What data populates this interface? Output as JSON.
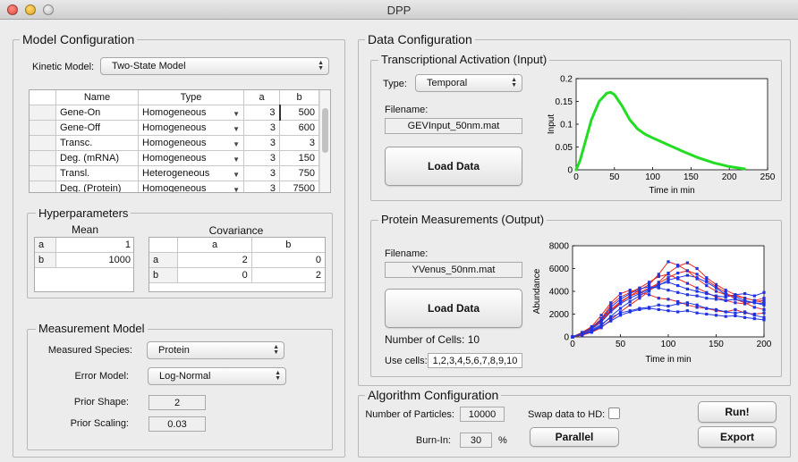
{
  "window": {
    "title": "DPP"
  },
  "model_config": {
    "title": "Model Configuration",
    "kinetic_label": "Kinetic Model:",
    "kinetic_value": "Two-State Model",
    "table": {
      "headers": [
        "Name",
        "Type",
        "a",
        "b"
      ],
      "rows": [
        {
          "name": "Gene-On",
          "type": "Homogeneous",
          "a": "3",
          "b": "500"
        },
        {
          "name": "Gene-Off",
          "type": "Homogeneous",
          "a": "3",
          "b": "600"
        },
        {
          "name": "Transc.",
          "type": "Homogeneous",
          "a": "3",
          "b": "3"
        },
        {
          "name": "Deg. (mRNA)",
          "type": "Homogeneous",
          "a": "3",
          "b": "150"
        },
        {
          "name": "Transl.",
          "type": "Heterogeneous",
          "a": "3",
          "b": "750"
        },
        {
          "name": "Deg. (Protein)",
          "type": "Homogeneous",
          "a": "3",
          "b": "7500"
        }
      ]
    },
    "hyper": {
      "title": "Hyperparameters",
      "mean_title": "Mean",
      "cov_title": "Covariance",
      "mean_rows": [
        {
          "label": "a",
          "value": "1"
        },
        {
          "label": "b",
          "value": "1000"
        }
      ],
      "cov_headers": [
        "a",
        "b"
      ],
      "cov_rows": [
        {
          "label": "a",
          "values": [
            "2",
            "0"
          ]
        },
        {
          "label": "b",
          "values": [
            "0",
            "2"
          ]
        }
      ]
    },
    "measurement": {
      "title": "Measurement Model",
      "species_label": "Measured Species:",
      "species_value": "Protein",
      "error_label": "Error Model:",
      "error_value": "Log-Normal",
      "shape_label": "Prior Shape:",
      "shape_value": "2",
      "scaling_label": "Prior Scaling:",
      "scaling_value": "0.03"
    }
  },
  "data_config": {
    "title": "Data Configuration",
    "input": {
      "title": "Transcriptional Activation (Input)",
      "type_label": "Type:",
      "type_value": "Temporal",
      "filename_label": "Filename:",
      "filename_value": "GEVInput_50nm.mat",
      "load_label": "Load Data"
    },
    "output": {
      "title": "Protein Measurements (Output)",
      "filename_label": "Filename:",
      "filename_value": "YVenus_50nm.mat",
      "load_label": "Load Data",
      "cells_text": "Number of Cells: 10",
      "use_cells_label": "Use cells:",
      "use_cells_value": "1,2,3,4,5,6,7,8,9,10"
    }
  },
  "algorithm": {
    "title": "Algorithm Configuration",
    "particles_label": "Number of Particles:",
    "particles_value": "10000",
    "burnin_label": "Burn-In:",
    "burnin_value": "30",
    "burnin_unit": "%",
    "swap_label": "Swap data to HD:",
    "swap_checked": false,
    "parallel_label": "Parallel",
    "run_label": "Run!",
    "export_label": "Export"
  },
  "chart_data": [
    {
      "type": "line",
      "title": "",
      "xlabel": "Time in min",
      "ylabel": "Input",
      "xlim": [
        0,
        250
      ],
      "ylim": [
        0,
        0.2
      ],
      "xticks": [
        0,
        50,
        100,
        150,
        200,
        250
      ],
      "yticks": [
        0,
        0.05,
        0.1,
        0.15,
        0.2
      ],
      "series": [
        {
          "color": "#22dd22",
          "x": [
            0,
            5,
            10,
            20,
            30,
            40,
            45,
            50,
            60,
            70,
            80,
            90,
            100,
            120,
            140,
            160,
            180,
            200,
            220
          ],
          "y": [
            0,
            0.02,
            0.05,
            0.11,
            0.15,
            0.168,
            0.17,
            0.165,
            0.14,
            0.11,
            0.09,
            0.078,
            0.07,
            0.055,
            0.04,
            0.026,
            0.015,
            0.007,
            0.002
          ]
        }
      ]
    },
    {
      "type": "line",
      "title": "",
      "xlabel": "Time in min",
      "ylabel": "Abundance",
      "xlim": [
        0,
        200
      ],
      "ylim": [
        0,
        8000
      ],
      "xticks": [
        0,
        50,
        100,
        150,
        200
      ],
      "yticks": [
        0,
        2000,
        4000,
        6000,
        8000
      ],
      "x": [
        0,
        10,
        20,
        30,
        40,
        50,
        60,
        70,
        80,
        90,
        100,
        110,
        120,
        130,
        140,
        150,
        160,
        170,
        180,
        190,
        200
      ],
      "series": [
        {
          "y": [
            0,
            300,
            800,
            1600,
            2800,
            3500,
            3900,
            4300,
            4800,
            5300,
            5500,
            5100,
            4700,
            4300,
            3900,
            3500,
            3200,
            3000,
            2900,
            3100,
            3200
          ]
        },
        {
          "y": [
            0,
            200,
            500,
            1000,
            1800,
            2500,
            3100,
            3600,
            4100,
            4500,
            5000,
            5200,
            5400,
            5200,
            4800,
            4300,
            3700,
            3500,
            3200,
            3000,
            2800
          ]
        },
        {
          "y": [
            0,
            400,
            900,
            1900,
            3000,
            3800,
            4100,
            3900,
            3700,
            3400,
            3300,
            3100,
            2800,
            2600,
            2500,
            2300,
            2200,
            2400,
            2100,
            2000,
            2100
          ]
        },
        {
          "y": [
            0,
            300,
            700,
            1300,
            2200,
            2900,
            3400,
            3800,
            4200,
            4600,
            4800,
            4500,
            4200,
            4000,
            3800,
            3600,
            3500,
            3700,
            3800,
            3600,
            3900
          ]
        },
        {
          "y": [
            0,
            150,
            400,
            800,
            1500,
            2200,
            2800,
            3400,
            4000,
            4800,
            5600,
            6200,
            6500,
            6000,
            5200,
            4600,
            4100,
            3700,
            3400,
            3200,
            3000
          ]
        },
        {
          "y": [
            0,
            250,
            600,
            1100,
            1700,
            2100,
            2300,
            2500,
            2600,
            2800,
            2700,
            2900,
            3000,
            2800,
            2500,
            2400,
            2200,
            2100,
            2200,
            1900,
            1700
          ]
        },
        {
          "y": [
            0,
            350,
            850,
            1500,
            2400,
            3100,
            3600,
            3900,
            4300,
            4700,
            5200,
            5600,
            5800,
            5500,
            5000,
            4400,
            3900,
            3300,
            3000,
            2600,
            2400
          ]
        },
        {
          "y": [
            0,
            200,
            450,
            900,
            1400,
            1900,
            2200,
            2400,
            2500,
            2400,
            2300,
            2200,
            2300,
            2100,
            2000,
            1900,
            1800,
            1850,
            1700,
            1600,
            1500
          ]
        },
        {
          "y": [
            0,
            300,
            750,
            1400,
            2300,
            3000,
            3600,
            4100,
            4600,
            5500,
            6600,
            6300,
            5800,
            5100,
            4500,
            4000,
            3700,
            3600,
            3400,
            3200,
            3400
          ]
        },
        {
          "y": [
            0,
            350,
            800,
            1500,
            2600,
            3300,
            3800,
            4200,
            4400,
            4300,
            4100,
            3900,
            3700,
            3600,
            3400,
            3300,
            3200,
            3300,
            3100,
            3000,
            2900
          ]
        }
      ]
    }
  ]
}
